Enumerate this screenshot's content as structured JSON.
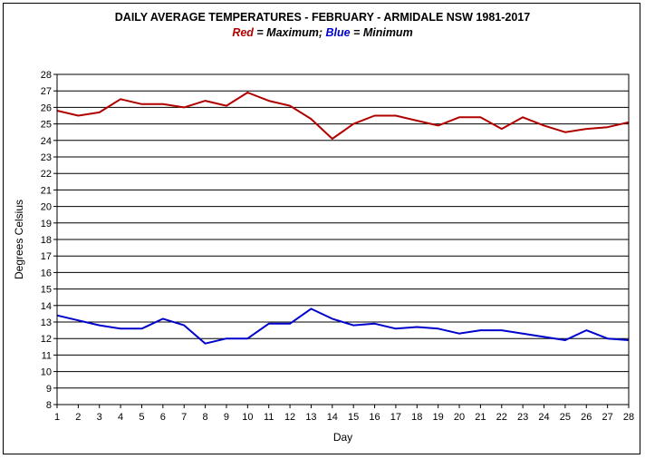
{
  "chart_data": {
    "type": "line",
    "title": "DAILY AVERAGE  TEMPERATURES - FEBRUARY - ARMIDALE NSW  1981-2017",
    "legend": {
      "red_word": "Red",
      "red_desc": " = Maximum;  ",
      "blue_word": "Blue",
      "blue_desc": " = Minimum"
    },
    "xlabel": "Day",
    "ylabel": "Degrees Celsius",
    "x": [
      1,
      2,
      3,
      4,
      5,
      6,
      7,
      8,
      9,
      10,
      11,
      12,
      13,
      14,
      15,
      16,
      17,
      18,
      19,
      20,
      21,
      22,
      23,
      24,
      25,
      26,
      27,
      28
    ],
    "xlim": [
      1,
      28
    ],
    "ylim": [
      8,
      28
    ],
    "yticks": [
      8,
      9,
      10,
      11,
      12,
      13,
      14,
      15,
      16,
      17,
      18,
      19,
      20,
      21,
      22,
      23,
      24,
      25,
      26,
      27,
      28
    ],
    "grid": "horizontal",
    "series": [
      {
        "name": "Maximum",
        "color": "#b00000",
        "values": [
          25.8,
          25.5,
          25.7,
          26.5,
          26.2,
          26.2,
          26.0,
          26.4,
          26.1,
          26.9,
          26.4,
          26.1,
          25.3,
          24.1,
          25.0,
          25.5,
          25.5,
          25.2,
          24.9,
          25.4,
          25.4,
          24.7,
          25.4,
          24.9,
          24.5,
          24.7,
          24.8,
          25.1
        ]
      },
      {
        "name": "Minimum",
        "color": "#0000cc",
        "values": [
          13.4,
          13.1,
          12.8,
          12.6,
          12.6,
          13.2,
          12.8,
          11.7,
          12.0,
          12.0,
          12.9,
          12.9,
          13.8,
          13.2,
          12.8,
          12.9,
          12.6,
          12.7,
          12.6,
          12.3,
          12.5,
          12.5,
          12.3,
          12.1,
          11.9,
          12.5,
          12.0,
          11.9
        ]
      }
    ]
  }
}
